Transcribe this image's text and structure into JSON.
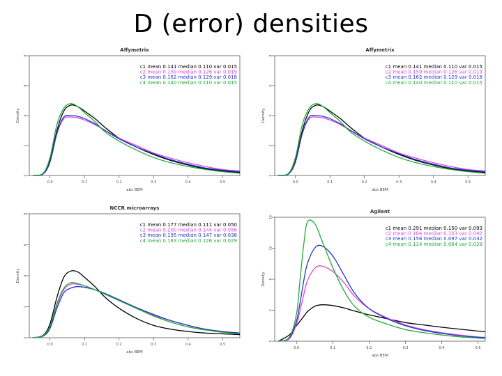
{
  "slide": {
    "title": "D (error) densities"
  },
  "colors": {
    "c1": "#000000",
    "c2": "#dd44dd",
    "c3": "#2233cc",
    "c4": "#22aa33"
  },
  "chart_data": [
    {
      "type": "line",
      "title": "Affymetrix",
      "xlabel": "abs BEM",
      "ylabel": "Density",
      "xlim": [
        -0.06,
        0.55
      ],
      "ylim": [
        0,
        8
      ],
      "xticks": [
        "0.0",
        "0.1",
        "0.2",
        "0.3",
        "0.4",
        "0.5"
      ],
      "yticks": [
        "0",
        "2",
        "4",
        "6",
        "8"
      ],
      "x": [
        -0.05,
        -0.02,
        0.0,
        0.02,
        0.04,
        0.06,
        0.08,
        0.1,
        0.13,
        0.16,
        0.2,
        0.25,
        0.3,
        0.35,
        0.4,
        0.45,
        0.5,
        0.55
      ],
      "series": [
        {
          "name": "c1",
          "values": [
            0,
            0.1,
            1.0,
            3.0,
            4.3,
            4.7,
            4.6,
            4.3,
            3.8,
            3.2,
            2.5,
            1.9,
            1.4,
            1.0,
            0.7,
            0.45,
            0.3,
            0.2
          ]
        },
        {
          "name": "c2",
          "values": [
            0,
            0.1,
            0.9,
            2.8,
            3.8,
            3.9,
            3.85,
            3.7,
            3.4,
            3.0,
            2.5,
            2.0,
            1.5,
            1.15,
            0.85,
            0.6,
            0.4,
            0.3
          ]
        },
        {
          "name": "c3",
          "values": [
            0,
            0.1,
            0.9,
            2.8,
            3.9,
            4.0,
            3.95,
            3.8,
            3.45,
            3.0,
            2.45,
            1.9,
            1.45,
            1.05,
            0.75,
            0.5,
            0.35,
            0.25
          ]
        },
        {
          "name": "c4",
          "values": [
            0,
            0.15,
            1.2,
            3.4,
            4.5,
            4.8,
            4.6,
            4.2,
            3.6,
            2.9,
            2.3,
            1.7,
            1.2,
            0.85,
            0.6,
            0.4,
            0.25,
            0.15
          ]
        }
      ],
      "legend": [
        {
          "c": "c1",
          "text": "c1 mean 0.141 median 0.110 var 0.015"
        },
        {
          "c": "c2",
          "text": "c2 mean 0.159 median 0.126 var 0.019"
        },
        {
          "c": "c3",
          "text": "c3 mean 0.162 median 0.129 var 0.018"
        },
        {
          "c": "c4",
          "text": "c4 mean 0.140 median 0.110 var 0.015"
        }
      ],
      "legend_position": "top-right"
    },
    {
      "type": "line",
      "title": "Affymetrix",
      "xlabel": "abs BEM",
      "ylabel": "Density",
      "xlim": [
        -0.06,
        0.55
      ],
      "ylim": [
        0,
        8
      ],
      "xticks": [
        "0.0",
        "0.1",
        "0.2",
        "0.3",
        "0.4",
        "0.5"
      ],
      "yticks": [
        "0",
        "2",
        "4",
        "6",
        "8"
      ],
      "x": [
        -0.05,
        -0.02,
        0.0,
        0.02,
        0.04,
        0.06,
        0.08,
        0.1,
        0.13,
        0.16,
        0.2,
        0.25,
        0.3,
        0.35,
        0.4,
        0.45,
        0.5,
        0.55
      ],
      "series": [
        {
          "name": "c1",
          "values": [
            0,
            0.1,
            1.0,
            3.0,
            4.3,
            4.7,
            4.6,
            4.3,
            3.8,
            3.2,
            2.5,
            1.9,
            1.4,
            1.0,
            0.7,
            0.45,
            0.3,
            0.2
          ]
        },
        {
          "name": "c2",
          "values": [
            0,
            0.1,
            0.9,
            2.8,
            3.8,
            3.9,
            3.85,
            3.7,
            3.4,
            3.0,
            2.5,
            2.0,
            1.5,
            1.15,
            0.85,
            0.6,
            0.4,
            0.3
          ]
        },
        {
          "name": "c3",
          "values": [
            0,
            0.1,
            0.9,
            2.8,
            3.9,
            4.0,
            3.95,
            3.8,
            3.45,
            3.0,
            2.45,
            1.9,
            1.45,
            1.05,
            0.75,
            0.5,
            0.35,
            0.25
          ]
        },
        {
          "name": "c4",
          "values": [
            0,
            0.15,
            1.2,
            3.4,
            4.5,
            4.8,
            4.6,
            4.2,
            3.6,
            2.9,
            2.3,
            1.7,
            1.2,
            0.85,
            0.6,
            0.4,
            0.25,
            0.15
          ]
        }
      ],
      "legend": [
        {
          "c": "c1",
          "text": "c1 mean 0.141 median 0.110 var 0.015"
        },
        {
          "c": "c2",
          "text": "c2 mean 0.159 median 0.126 var 0.019"
        },
        {
          "c": "c3",
          "text": "c3 mean 0.162 median 0.129 var 0.018"
        },
        {
          "c": "c4",
          "text": "c4 mean 0.140 median 0.110 var 0.015"
        }
      ],
      "legend_position": "top-right"
    },
    {
      "type": "line",
      "title": "NCCR microarrays",
      "xlabel": "abs BEM",
      "ylabel": "Density",
      "xlim": [
        -0.06,
        0.55
      ],
      "ylim": [
        0,
        8
      ],
      "xticks": [
        "0.0",
        "0.1",
        "0.2",
        "0.3",
        "0.4",
        "0.5"
      ],
      "yticks": [
        "0",
        "2",
        "4",
        "6",
        "8"
      ],
      "x": [
        -0.05,
        -0.02,
        0.0,
        0.02,
        0.04,
        0.06,
        0.08,
        0.1,
        0.13,
        0.16,
        0.2,
        0.25,
        0.3,
        0.35,
        0.4,
        0.45,
        0.5,
        0.55
      ],
      "series": [
        {
          "name": "c1",
          "values": [
            0,
            0.15,
            0.9,
            2.6,
            3.9,
            4.3,
            4.25,
            3.9,
            3.3,
            2.6,
            1.9,
            1.25,
            0.8,
            0.55,
            0.4,
            0.3,
            0.25,
            0.2
          ]
        },
        {
          "name": "c2",
          "values": [
            0,
            0.1,
            0.7,
            2.1,
            3.1,
            3.45,
            3.45,
            3.35,
            3.1,
            2.8,
            2.4,
            1.9,
            1.45,
            1.1,
            0.8,
            0.55,
            0.4,
            0.3
          ]
        },
        {
          "name": "c3",
          "values": [
            0,
            0.1,
            0.6,
            1.9,
            2.9,
            3.2,
            3.3,
            3.25,
            3.1,
            2.85,
            2.45,
            1.95,
            1.5,
            1.1,
            0.8,
            0.55,
            0.4,
            0.3
          ]
        },
        {
          "name": "c4",
          "values": [
            0,
            0.12,
            0.75,
            2.2,
            3.2,
            3.55,
            3.5,
            3.35,
            3.1,
            2.8,
            2.4,
            1.9,
            1.4,
            1.0,
            0.7,
            0.5,
            0.35,
            0.25
          ]
        }
      ],
      "legend": [
        {
          "c": "c1",
          "text": "c1 mean 0.177 median 0.111 var 0.050"
        },
        {
          "c": "c2",
          "text": "c2 mean 0.200 median 0.144 var 0.056"
        },
        {
          "c": "c3",
          "text": "c3 mean 0.195 median 0.147 var 0.036"
        },
        {
          "c": "c4",
          "text": "c4 mean 0.183 median 0.126 var 0.029"
        }
      ],
      "legend_position": "top-right"
    },
    {
      "type": "line",
      "title": "Agilent",
      "xlabel": "abs BEM",
      "ylabel": "Density",
      "xlim": [
        -0.06,
        0.52
      ],
      "ylim": [
        0,
        16
      ],
      "xticks": [
        "0.0",
        "0.1",
        "0.2",
        "0.3",
        "0.4",
        "0.5"
      ],
      "yticks": [
        "0",
        "4",
        "8",
        "12",
        "16"
      ],
      "x": [
        -0.05,
        -0.02,
        0.0,
        0.01,
        0.02,
        0.03,
        0.05,
        0.07,
        0.1,
        0.13,
        0.16,
        0.2,
        0.25,
        0.3,
        0.35,
        0.4,
        0.45,
        0.5,
        0.52
      ],
      "series": [
        {
          "name": "c1",
          "values": [
            0,
            0.8,
            2.0,
            2.6,
            3.2,
            3.8,
            4.5,
            4.7,
            4.6,
            4.3,
            3.9,
            3.4,
            2.9,
            2.4,
            2.1,
            1.8,
            1.55,
            1.3,
            1.2
          ]
        },
        {
          "name": "c2",
          "values": [
            0,
            0.3,
            2.2,
            4.0,
            6.0,
            7.8,
            9.4,
            9.7,
            9.0,
            7.6,
            5.8,
            4.2,
            3.0,
            2.1,
            1.5,
            1.1,
            0.8,
            0.55,
            0.5
          ]
        },
        {
          "name": "c3",
          "values": [
            0,
            0.4,
            2.6,
            5.0,
            7.8,
            10.0,
            12.0,
            12.3,
            11.0,
            8.6,
            6.2,
            4.2,
            2.9,
            2.0,
            1.4,
            1.0,
            0.7,
            0.5,
            0.45
          ]
        },
        {
          "name": "c4",
          "values": [
            0,
            0.5,
            3.5,
            8.0,
            12.5,
            15.4,
            15.2,
            13.0,
            9.5,
            6.6,
            4.5,
            3.1,
            2.2,
            1.5,
            1.1,
            0.8,
            0.55,
            0.4,
            0.35
          ]
        }
      ],
      "legend": [
        {
          "c": "c1",
          "text": "c1 mean 0.291 median 0.150 var 0.093"
        },
        {
          "c": "c2",
          "text": "c2 mean 0.184 median 0.103 var 0.042"
        },
        {
          "c": "c3",
          "text": "c3 mean 0.156 median 0.097 var 0.032"
        },
        {
          "c": "c4",
          "text": "c4 mean 0.114 median 0.064 var 0.028"
        }
      ],
      "legend_position": "top-right"
    }
  ]
}
